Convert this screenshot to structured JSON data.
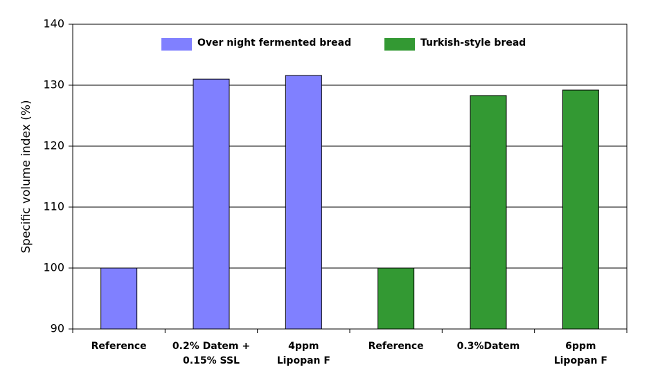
{
  "chart_data": {
    "type": "bar",
    "y_label": "Specific volume index (%)",
    "categories": [
      [
        "Reference"
      ],
      [
        "0.2% Datem +",
        "0.15% SSL"
      ],
      [
        "4ppm",
        "Lipopan F"
      ],
      [
        "Reference"
      ],
      [
        "0.3%Datem"
      ],
      [
        "6ppm",
        "Lipopan F"
      ]
    ],
    "series": [
      {
        "name": "Over night fermented bread",
        "color": "#8080ff",
        "values": [
          100,
          131,
          131.6,
          null,
          null,
          null
        ]
      },
      {
        "name": "Turkish-style bread",
        "color": "#339933",
        "values": [
          null,
          null,
          null,
          100,
          128.3,
          129.2
        ]
      }
    ],
    "ylim": [
      90,
      140
    ],
    "yticks": [
      90,
      100,
      110,
      120,
      130,
      140
    ],
    "grid": true
  }
}
